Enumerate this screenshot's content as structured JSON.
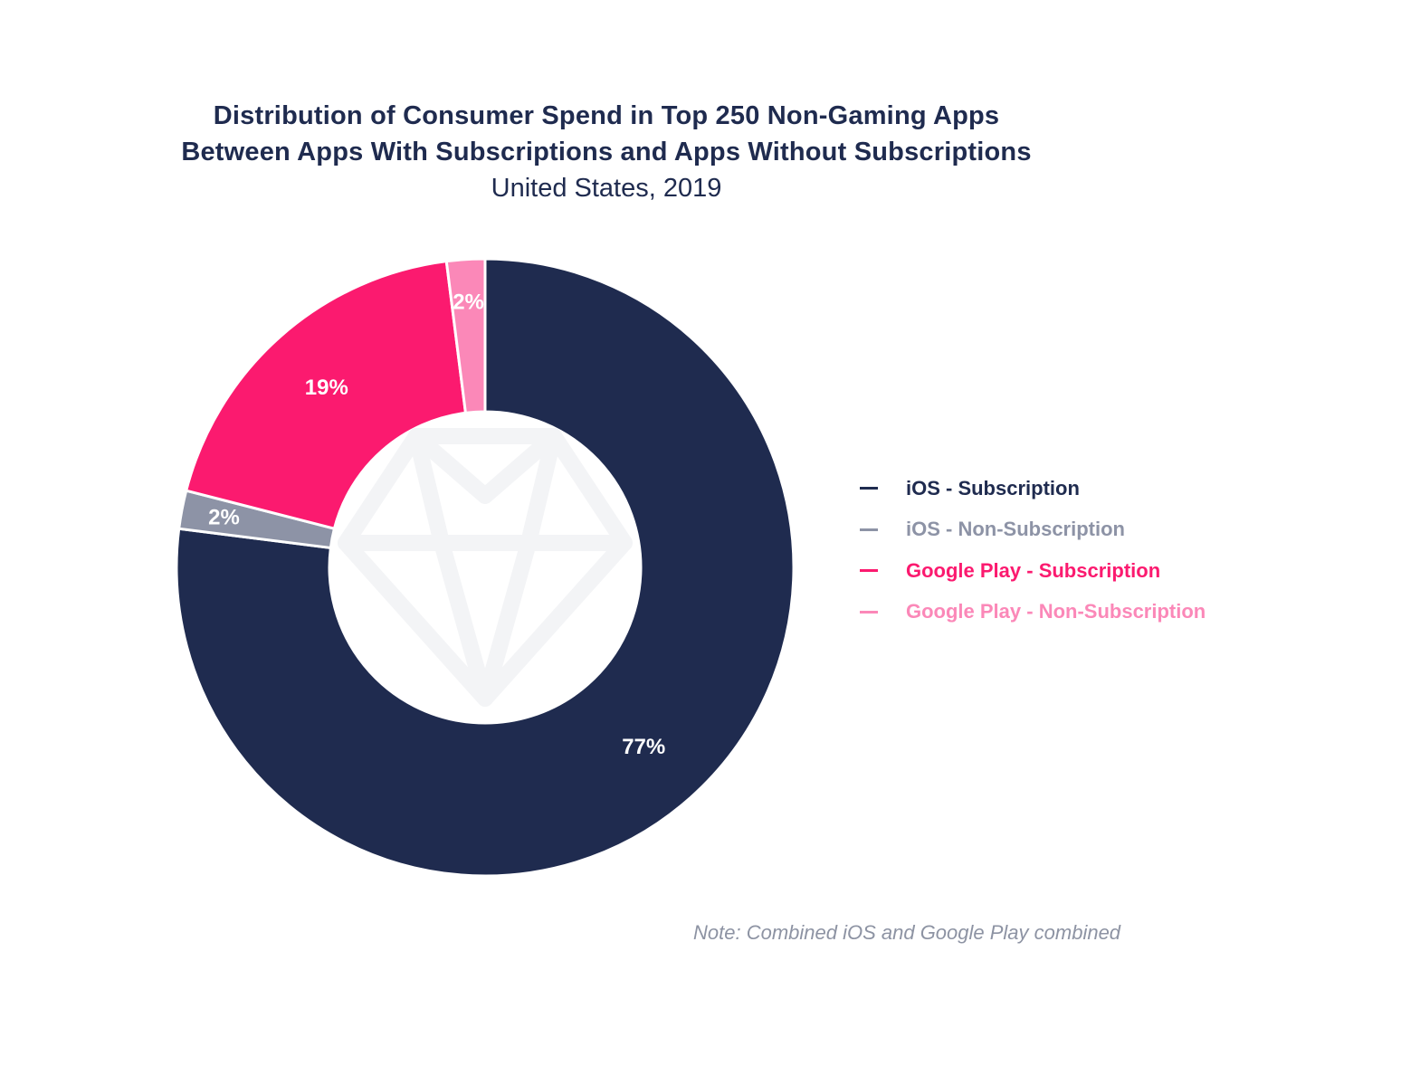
{
  "chart_data": {
    "type": "pie",
    "title_lines": [
      "Distribution of Consumer Spend in Top 250 Non-Gaming Apps",
      "Between Apps With Subscriptions and Apps Without Subscriptions"
    ],
    "subtitle": "United States, 2019",
    "donut": true,
    "legend_position": "right",
    "slices": [
      {
        "label": "iOS - Subscription",
        "value": 77,
        "display": "77%",
        "color": "#1f2b4f",
        "label_color": "#1f2b4f"
      },
      {
        "label": "iOS - Non-Subscription",
        "value": 2,
        "display": "2%",
        "color": "#8d93a6",
        "label_color": "#8d93a6"
      },
      {
        "label": "Google Play - Subscription",
        "value": 19,
        "display": "19%",
        "color": "#fb1a6f",
        "label_color": "#fb1a6f"
      },
      {
        "label": "Google Play - Non-Subscription",
        "value": 2,
        "display": "2%",
        "color": "#fb88b8",
        "label_color": "#fb88b8"
      }
    ],
    "note": "Note: Combined iOS and Google Play combined",
    "center_icon": "diamond-icon"
  }
}
